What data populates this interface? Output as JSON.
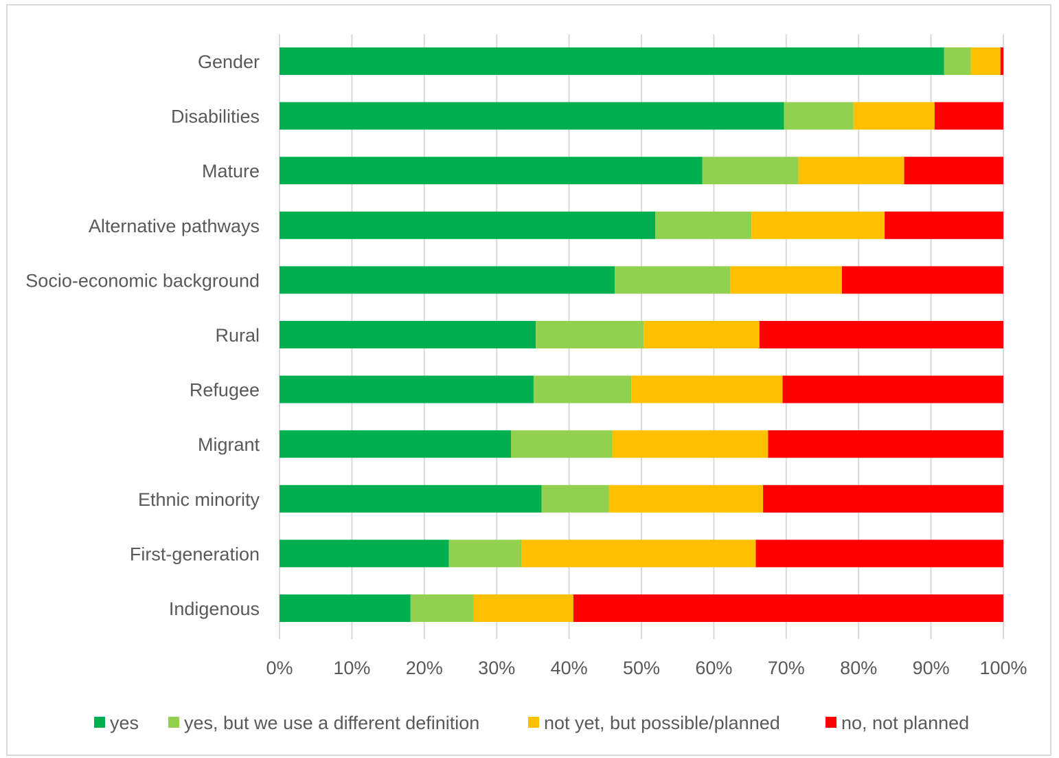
{
  "chart_data": {
    "type": "bar",
    "orientation": "horizontal",
    "stacked": "percent",
    "title": "",
    "xlabel": "",
    "ylabel": "",
    "xlim": [
      0,
      100
    ],
    "grid": true,
    "legend_position": "bottom",
    "categories": [
      "Gender",
      "Disabilities",
      "Mature",
      "Alternative pathways",
      "Socio-economic background",
      "Rural",
      "Refugee",
      "Migrant",
      "Ethnic minority",
      "First-generation",
      "Indigenous"
    ],
    "x_ticks": [
      "0%",
      "10%",
      "20%",
      "30%",
      "40%",
      "50%",
      "60%",
      "70%",
      "80%",
      "90%",
      "100%"
    ],
    "series": [
      {
        "name": "yes",
        "color": "#00b050",
        "values": [
          91.8,
          69.7,
          58.4,
          51.9,
          46.3,
          35.4,
          35.1,
          32.0,
          36.2,
          23.4,
          18.1
        ]
      },
      {
        "name": "yes, but we use a different definition",
        "color": "#92d050",
        "values": [
          3.7,
          9.6,
          13.3,
          13.3,
          16.0,
          14.9,
          13.5,
          14.0,
          9.3,
          10.0,
          8.7
        ]
      },
      {
        "name": "not yet, but possible/planned",
        "color": "#ffc000",
        "values": [
          4.1,
          11.2,
          14.6,
          18.4,
          15.4,
          16.0,
          20.9,
          21.5,
          21.3,
          32.4,
          13.8
        ]
      },
      {
        "name": "no, not planned",
        "color": "#ff0000",
        "values": [
          0.4,
          9.5,
          13.7,
          16.4,
          22.3,
          33.7,
          30.5,
          32.5,
          33.2,
          34.2,
          59.4
        ]
      }
    ]
  }
}
